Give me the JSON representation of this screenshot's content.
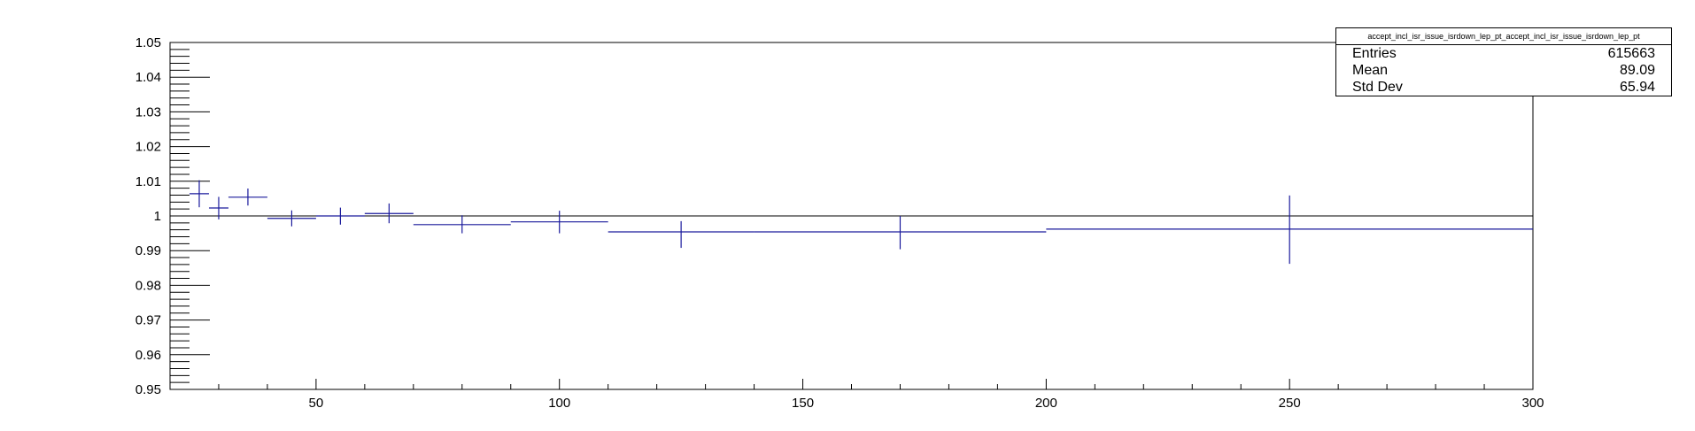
{
  "chart_data": {
    "type": "scatter",
    "title": "",
    "xlabel": "",
    "ylabel": "",
    "xlim": [
      20,
      300
    ],
    "ylim": [
      0.95,
      1.05
    ],
    "x_ticks": [
      50,
      100,
      150,
      200,
      250,
      300
    ],
    "y_ticks": [
      "0.95",
      "0.96",
      "0.97",
      "0.98",
      "0.99",
      "1",
      "1.01",
      "1.02",
      "1.03",
      "1.04",
      "1.05"
    ],
    "reference_line": 1.0,
    "color": "#1a1a9c",
    "points": [
      {
        "x": 26,
        "xlo": 24,
        "xhi": 28,
        "y": 1.0064,
        "ylo": 1.0025,
        "yhi": 1.0103
      },
      {
        "x": 30,
        "xlo": 28,
        "xhi": 32,
        "y": 1.0023,
        "ylo": 0.999,
        "yhi": 1.0055
      },
      {
        "x": 36,
        "xlo": 32,
        "xhi": 40,
        "y": 1.0054,
        "ylo": 1.003,
        "yhi": 1.0079
      },
      {
        "x": 45,
        "xlo": 40,
        "xhi": 50,
        "y": 0.9993,
        "ylo": 0.997,
        "yhi": 1.0016
      },
      {
        "x": 55,
        "xlo": 50,
        "xhi": 60,
        "y": 1.0,
        "ylo": 0.9975,
        "yhi": 1.0024
      },
      {
        "x": 65,
        "xlo": 60,
        "xhi": 70,
        "y": 1.0007,
        "ylo": 0.9979,
        "yhi": 1.0036
      },
      {
        "x": 80,
        "xlo": 70,
        "xhi": 90,
        "y": 0.9975,
        "ylo": 0.995,
        "yhi": 1.0002
      },
      {
        "x": 100,
        "xlo": 90,
        "xhi": 110,
        "y": 0.9983,
        "ylo": 0.995,
        "yhi": 1.0015
      },
      {
        "x": 125,
        "xlo": 110,
        "xhi": 140,
        "y": 0.9954,
        "ylo": 0.9908,
        "yhi": 0.9985
      },
      {
        "x": 170,
        "xlo": 140,
        "xhi": 200,
        "y": 0.9954,
        "ylo": 0.9904,
        "yhi": 1.0
      },
      {
        "x": 250,
        "xlo": 200,
        "xhi": 300,
        "y": 0.9962,
        "ylo": 0.9862,
        "yhi": 1.0059
      }
    ]
  },
  "statbox": {
    "title": "accept_incl_isr_issue_isrdown_lep_pt_accept_incl_isr_issue_isrdown_lep_pt",
    "rows": [
      {
        "label": "Entries",
        "value": "615663"
      },
      {
        "label": "Mean",
        "value": "89.09"
      },
      {
        "label": "Std Dev",
        "value": "65.94"
      }
    ]
  }
}
